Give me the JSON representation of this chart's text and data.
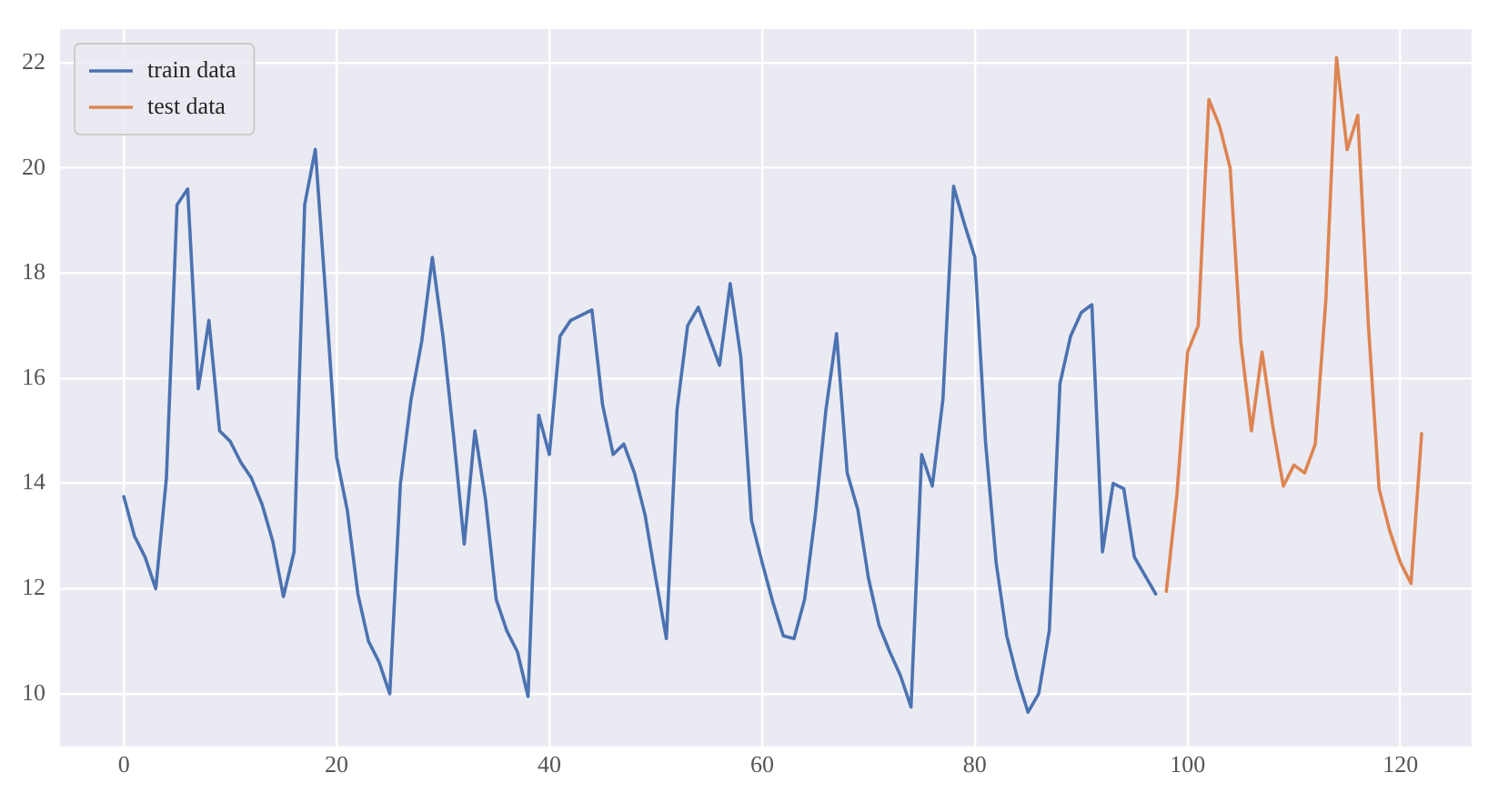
{
  "chart_data": {
    "type": "line",
    "xlim": [
      -6,
      126.7
    ],
    "ylim": [
      9,
      22.64
    ],
    "xticks": [
      0,
      20,
      40,
      60,
      80,
      100,
      120
    ],
    "yticks": [
      10,
      12,
      14,
      16,
      18,
      20,
      22
    ],
    "grid": true,
    "legend": "top left",
    "marker": "none",
    "line_style": "solid",
    "series": [
      {
        "name": "train data",
        "color": "#4c72b0",
        "x": [
          0,
          1,
          2,
          3,
          4,
          5,
          6,
          7,
          8,
          9,
          10,
          11,
          12,
          13,
          14,
          15,
          16,
          17,
          18,
          19,
          20,
          21,
          22,
          23,
          24,
          25,
          26,
          27,
          28,
          29,
          30,
          31,
          32,
          33,
          34,
          35,
          36,
          37,
          38,
          39,
          40,
          41,
          42,
          43,
          44,
          45,
          46,
          47,
          48,
          49,
          50,
          51,
          52,
          53,
          54,
          55,
          56,
          57,
          58,
          59,
          60,
          61,
          62,
          63,
          64,
          65,
          66,
          67,
          68,
          69,
          70,
          71,
          72,
          73,
          74,
          75,
          76,
          77,
          78,
          79,
          80,
          81,
          82,
          83,
          84,
          85,
          86,
          87,
          88,
          89,
          90,
          91,
          92,
          93,
          94,
          95,
          96,
          97
        ],
        "values": [
          13.75,
          13.0,
          12.6,
          12.0,
          14.1,
          19.3,
          19.6,
          15.8,
          17.1,
          15.0,
          14.8,
          14.4,
          14.1,
          13.6,
          12.9,
          11.85,
          12.7,
          19.3,
          20.35,
          17.5,
          14.5,
          13.5,
          11.9,
          11.0,
          10.6,
          10.0,
          14.0,
          15.6,
          16.7,
          18.3,
          16.8,
          14.9,
          12.85,
          15.0,
          13.7,
          11.8,
          11.2,
          10.8,
          9.95,
          15.3,
          14.55,
          16.8,
          17.1,
          17.2,
          17.3,
          15.5,
          14.55,
          14.75,
          14.2,
          13.4,
          12.2,
          11.05,
          15.4,
          17.0,
          17.35,
          16.8,
          16.25,
          17.8,
          16.4,
          13.3,
          12.5,
          11.75,
          11.1,
          11.05,
          11.8,
          13.4,
          15.4,
          16.85,
          14.2,
          13.5,
          12.2,
          11.3,
          10.8,
          10.35,
          9.75,
          14.55,
          13.95,
          15.6,
          19.65,
          18.95,
          18.3,
          14.8,
          12.5,
          11.1,
          10.3,
          9.65,
          10.0,
          11.2,
          15.9,
          16.8,
          17.25,
          17.4,
          12.7,
          14.0,
          13.9,
          12.6,
          12.25,
          11.9
        ]
      },
      {
        "name": "test data",
        "color": "#dd8452",
        "x": [
          98,
          99,
          100,
          101,
          102,
          103,
          104,
          105,
          106,
          107,
          108,
          109,
          110,
          111,
          112,
          113,
          114,
          115,
          116,
          117,
          118,
          119,
          120,
          121,
          122
        ],
        "values": [
          11.95,
          13.8,
          16.5,
          17.0,
          21.3,
          20.8,
          20.0,
          16.7,
          15.0,
          16.5,
          15.1,
          13.95,
          14.35,
          14.2,
          14.75,
          17.5,
          22.1,
          20.35,
          21.0,
          17.0,
          13.9,
          13.1,
          12.5,
          12.1,
          14.95
        ]
      }
    ]
  }
}
